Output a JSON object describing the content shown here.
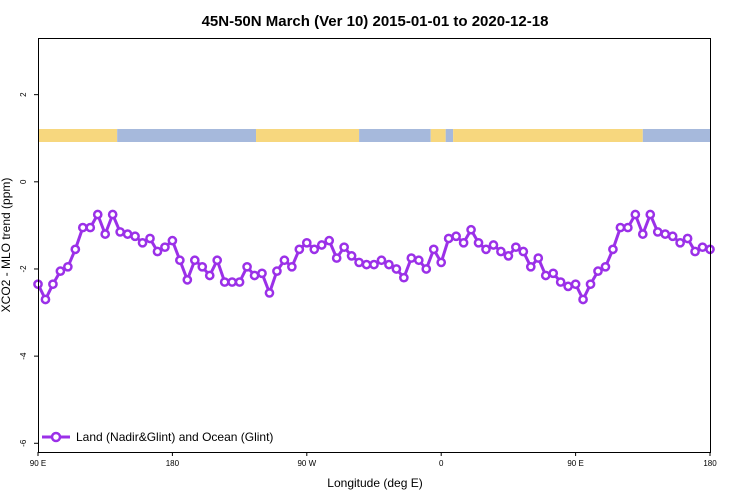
{
  "chart_data": {
    "type": "line",
    "title": "45N-50N March (Ver 10)   2015-01-01 to 2020-12-18",
    "xlabel": "Longitude (deg E)",
    "ylabel": "XCO2 - MLO trend (ppm)",
    "xlim": [
      90,
      540
    ],
    "ylim": [
      -6.2,
      3.3
    ],
    "x_ticks": [
      {
        "value": 90,
        "label": "90 E"
      },
      {
        "value": 180,
        "label": "180"
      },
      {
        "value": 270,
        "label": "90 W"
      },
      {
        "value": 360,
        "label": "0"
      },
      {
        "value": 450,
        "label": "90 E"
      },
      {
        "value": 540,
        "label": "180"
      }
    ],
    "y_ticks": [
      {
        "value": 2,
        "label": "2"
      },
      {
        "value": 0,
        "label": "0"
      },
      {
        "value": -2,
        "label": "-2"
      },
      {
        "value": -4,
        "label": "-4"
      },
      {
        "value": -6,
        "label": "-6"
      }
    ],
    "legend": {
      "placement": "bottom-left"
    },
    "land_ocean_band": {
      "colors": {
        "land": "#f7d77e",
        "ocean": "#a6b9dc"
      },
      "segments": [
        {
          "type": "land",
          "start": 90,
          "end": 143
        },
        {
          "type": "ocean",
          "start": 143,
          "end": 236
        },
        {
          "type": "land",
          "start": 236,
          "end": 305
        },
        {
          "type": "ocean",
          "start": 305,
          "end": 353
        },
        {
          "type": "land",
          "start": 353,
          "end": 363
        },
        {
          "type": "ocean",
          "start": 363,
          "end": 368
        },
        {
          "type": "land",
          "start": 368,
          "end": 495
        },
        {
          "type": "ocean",
          "start": 495,
          "end": 540
        }
      ]
    },
    "series": [
      {
        "name": "Land (Nadir&Glint) and Ocean (Glint)",
        "color": "#9b30e8",
        "x": [
          90,
          95,
          100,
          105,
          110,
          115,
          120,
          125,
          130,
          135,
          140,
          145,
          150,
          155,
          160,
          165,
          170,
          175,
          180,
          185,
          190,
          195,
          200,
          205,
          210,
          215,
          220,
          225,
          230,
          235,
          240,
          245,
          250,
          255,
          260,
          265,
          270,
          275,
          280,
          285,
          290,
          295,
          300,
          305,
          310,
          315,
          320,
          325,
          330,
          335,
          340,
          345,
          350,
          355,
          360,
          365,
          370,
          375,
          380,
          385,
          390,
          395,
          400,
          405,
          410,
          415,
          420,
          425,
          430,
          435,
          440,
          445,
          450,
          455,
          460,
          465,
          470,
          475,
          480,
          485,
          490,
          495,
          500,
          505,
          510,
          515,
          520,
          525,
          530,
          535,
          540
        ],
        "values": [
          -2.35,
          -2.7,
          -2.35,
          -2.05,
          -1.95,
          -1.55,
          -1.05,
          -1.05,
          -0.75,
          -1.2,
          -0.75,
          -1.15,
          -1.2,
          -1.25,
          -1.4,
          -1.3,
          -1.6,
          -1.5,
          -1.35,
          -1.8,
          -2.25,
          -1.8,
          -1.95,
          -2.15,
          -1.8,
          -2.3,
          -2.3,
          -2.3,
          -1.95,
          -2.15,
          -2.1,
          -2.55,
          -2.05,
          -1.8,
          -1.95,
          -1.55,
          -1.4,
          -1.55,
          -1.45,
          -1.35,
          -1.75,
          -1.5,
          -1.7,
          -1.85,
          -1.9,
          -1.9,
          -1.8,
          -1.9,
          -2.0,
          -2.2,
          -1.75,
          -1.8,
          -2.0,
          -1.55,
          -1.85,
          -1.3,
          -1.25,
          -1.4,
          -1.1,
          -1.4,
          -1.55,
          -1.45,
          -1.6,
          -1.7,
          -1.5,
          -1.6,
          -1.95,
          -1.75,
          -2.15,
          -2.1,
          -2.3,
          -2.4,
          -2.35,
          -2.7,
          -2.35,
          -2.05,
          -1.95,
          -1.55,
          -1.05,
          -1.05,
          -0.75,
          -1.2,
          -0.75,
          -1.15,
          -1.2,
          -1.25,
          -1.4,
          -1.3,
          -1.6,
          -1.5,
          -1.55
        ]
      }
    ]
  }
}
